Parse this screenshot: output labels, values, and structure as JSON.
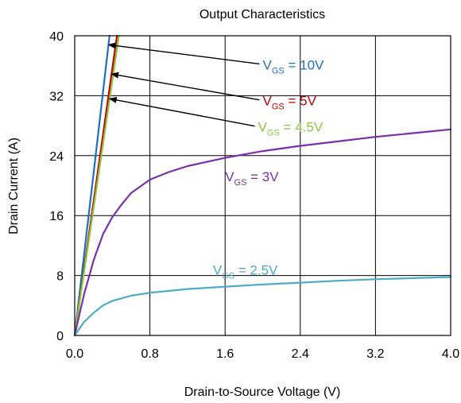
{
  "chart_data": {
    "type": "line",
    "title": "Output Characteristics",
    "xlabel": "Drain-to-Source Voltage (V)",
    "ylabel": "Drain Current (A)",
    "xlim": [
      0,
      4.0
    ],
    "ylim": [
      0,
      40
    ],
    "xticks": [
      "0.0",
      "0.8",
      "1.6",
      "2.4",
      "3.2",
      "4.0"
    ],
    "yticks": [
      "0",
      "8",
      "16",
      "24",
      "32",
      "40"
    ],
    "grid": true,
    "legend": "none",
    "series": [
      {
        "id": "vgs10",
        "color": "#1f6fbf",
        "x": [
          0,
          0.1,
          0.2,
          0.3,
          0.37
        ],
        "y": [
          0,
          10.8,
          21.6,
          32.4,
          40
        ]
      },
      {
        "id": "vgs5",
        "color": "#c00000",
        "x": [
          0,
          0.1,
          0.2,
          0.3,
          0.4,
          0.45
        ],
        "y": [
          0,
          8.9,
          17.8,
          26.7,
          35.6,
          40
        ]
      },
      {
        "id": "vgs45",
        "color": "#8cc63f",
        "x": [
          0,
          0.1,
          0.2,
          0.3,
          0.4,
          0.47
        ],
        "y": [
          0,
          8.5,
          17,
          25.5,
          34,
          40
        ]
      },
      {
        "id": "vgs3",
        "color": "#7b2fa8",
        "x": [
          0,
          0.05,
          0.1,
          0.2,
          0.3,
          0.4,
          0.5,
          0.6,
          0.8,
          1.0,
          1.2,
          1.6,
          2.0,
          2.4,
          2.8,
          3.2,
          3.6,
          4.0
        ],
        "y": [
          0,
          2.8,
          5.5,
          10.0,
          13.5,
          15.8,
          17.5,
          19.0,
          20.8,
          21.8,
          22.6,
          23.7,
          24.6,
          25.3,
          25.9,
          26.5,
          27.0,
          27.5
        ]
      },
      {
        "id": "vgs25",
        "color": "#4bacc6",
        "x": [
          0,
          0.05,
          0.1,
          0.2,
          0.3,
          0.4,
          0.6,
          0.8,
          1.2,
          1.6,
          2.0,
          2.4,
          2.8,
          3.2,
          3.6,
          4.0
        ],
        "y": [
          0,
          0.9,
          1.8,
          3.0,
          4.0,
          4.6,
          5.3,
          5.7,
          6.2,
          6.5,
          6.8,
          7.05,
          7.3,
          7.5,
          7.65,
          7.8
        ]
      }
    ],
    "annotations": [
      {
        "id": "vgs10",
        "main": "V",
        "sub": "GS",
        "rest": " = 10V",
        "color": "#1f6fbf",
        "x": 2.0,
        "y": 35.5,
        "arrow_to": [
          0.36,
          38.8
        ]
      },
      {
        "id": "vgs5",
        "main": "V",
        "sub": "GS",
        "rest": " = 5V",
        "color": "#c00000",
        "x": 2.0,
        "y": 30.7,
        "arrow_to": [
          0.39,
          34.9
        ]
      },
      {
        "id": "vgs45",
        "main": "V",
        "sub": "GS",
        "rest": " = 4.5V",
        "color": "#8cc63f",
        "x": 1.95,
        "y": 27.2,
        "arrow_to": [
          0.37,
          31.6
        ]
      },
      {
        "id": "vgs3",
        "main": "V",
        "sub": "GS",
        "rest": " = 3V",
        "color": "#7b2fa8",
        "x": 1.6,
        "y": 20.6,
        "arrow_to": null
      },
      {
        "id": "vgs25",
        "main": "V",
        "sub": "GS",
        "rest": " = 2.5V",
        "color": "#4bacc6",
        "x": 1.47,
        "y": 8.1,
        "arrow_to": null
      }
    ]
  }
}
